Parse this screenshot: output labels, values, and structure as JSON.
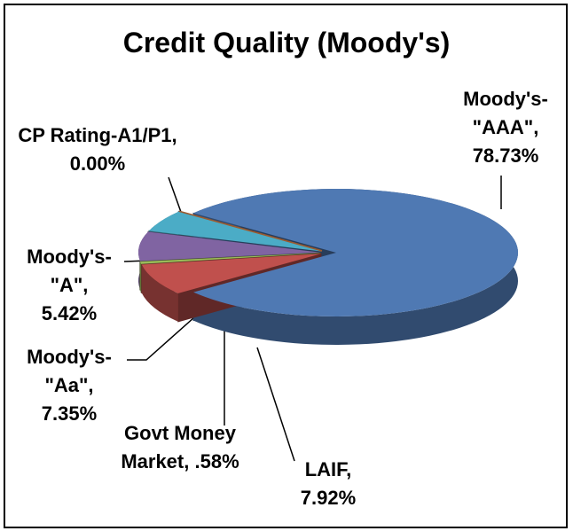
{
  "chart_data": {
    "type": "pie",
    "title": "Credit Quality (Moody's)",
    "categories": [
      "Moody's-\"AAA\",",
      "LAIF,",
      "Govt Money Market,",
      "Moody's-\"Aa\",",
      "Moody's-\"A\",",
      "CP Rating-A1/P1,"
    ],
    "values": [
      78.73,
      7.92,
      0.58,
      7.35,
      5.42,
      0.0
    ],
    "value_labels": [
      "78.73%",
      "7.92%",
      ".58%",
      "7.35%",
      "5.42%",
      "0.00%"
    ],
    "colors": [
      "#4f79b3",
      "#c0504d",
      "#9bbb59",
      "#8064a2",
      "#4bacc6",
      "#9c5a2e"
    ]
  }
}
